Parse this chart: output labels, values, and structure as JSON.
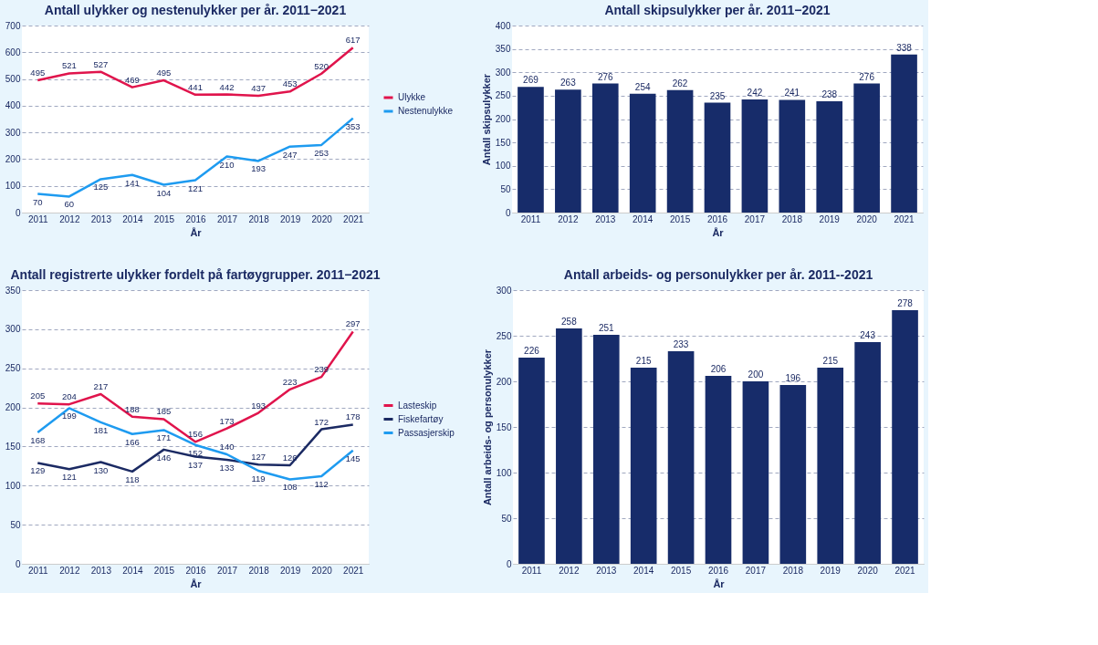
{
  "chart_data": [
    {
      "type": "line",
      "title": "Antall ulykker og nestenulykker per år. 2011−2021",
      "xlabel": "År",
      "categories": [
        "2011",
        "2012",
        "2013",
        "2014",
        "2015",
        "2016",
        "2017",
        "2018",
        "2019",
        "2020",
        "2021"
      ],
      "series": [
        {
          "name": "Ulykke",
          "color": "#e0144c",
          "values": [
            495,
            521,
            527,
            469,
            495,
            441,
            442,
            437,
            453,
            520,
            617
          ]
        },
        {
          "name": "Nestenulykke",
          "color": "#1e9bf0",
          "values": [
            70,
            60,
            125,
            141,
            104,
            121,
            210,
            193,
            247,
            253,
            353
          ]
        }
      ],
      "ylim": [
        0,
        700
      ],
      "yticks": [
        0,
        100,
        200,
        300,
        400,
        500,
        600,
        700
      ],
      "grid": "y",
      "legend": "right",
      "data_labels": true,
      "marker": "none",
      "line_style": "solid"
    },
    {
      "type": "bar",
      "title": "Antall skipsulykker per år. 2011−2021",
      "xlabel": "År",
      "ylabel": "Antall skipsulykker",
      "categories": [
        "2011",
        "2012",
        "2013",
        "2014",
        "2015",
        "2016",
        "2017",
        "2018",
        "2019",
        "2020",
        "2021"
      ],
      "values": [
        269,
        263,
        276,
        254,
        262,
        235,
        242,
        241,
        238,
        276,
        338
      ],
      "color": "#172c6a",
      "ylim": [
        0,
        400
      ],
      "yticks": [
        0,
        50,
        100,
        150,
        200,
        250,
        300,
        350,
        400
      ],
      "grid": "y",
      "data_labels": true
    },
    {
      "type": "line",
      "title": "Antall registrerte ulykker fordelt på fartøygrupper. 2011−2021",
      "xlabel": "År",
      "categories": [
        "2011",
        "2012",
        "2013",
        "2014",
        "2015",
        "2016",
        "2017",
        "2018",
        "2019",
        "2020",
        "2021"
      ],
      "series": [
        {
          "name": "Lasteskip",
          "color": "#e0144c",
          "values": [
            205,
            204,
            217,
            188,
            185,
            156,
            173,
            193,
            223,
            239,
            297
          ]
        },
        {
          "name": "Fiskefartøy",
          "color": "#1b2a63",
          "values": [
            129,
            121,
            130,
            118,
            146,
            137,
            133,
            127,
            126,
            172,
            178
          ]
        },
        {
          "name": "Passasjerskip",
          "color": "#1e9bf0",
          "values": [
            168,
            199,
            181,
            166,
            171,
            152,
            140,
            119,
            108,
            112,
            145
          ]
        }
      ],
      "ylim": [
        0,
        350
      ],
      "yticks": [
        0,
        50,
        100,
        150,
        200,
        250,
        300,
        350
      ],
      "grid": "y",
      "legend": "right",
      "data_labels": true,
      "marker": "none",
      "line_style": "solid"
    },
    {
      "type": "bar",
      "title": "Antall arbeids- og personulykker per år. 2011--2021",
      "xlabel": "År",
      "ylabel": "Antall arbeids- og personulykker",
      "categories": [
        "2011",
        "2012",
        "2013",
        "2014",
        "2015",
        "2016",
        "2017",
        "2018",
        "2019",
        "2020",
        "2021"
      ],
      "values": [
        226,
        258,
        251,
        215,
        233,
        206,
        200,
        196,
        215,
        243,
        278
      ],
      "color": "#172c6a",
      "ylim": [
        0,
        300
      ],
      "yticks": [
        0,
        50,
        100,
        150,
        200,
        250,
        300
      ],
      "grid": "y",
      "data_labels": true
    }
  ]
}
